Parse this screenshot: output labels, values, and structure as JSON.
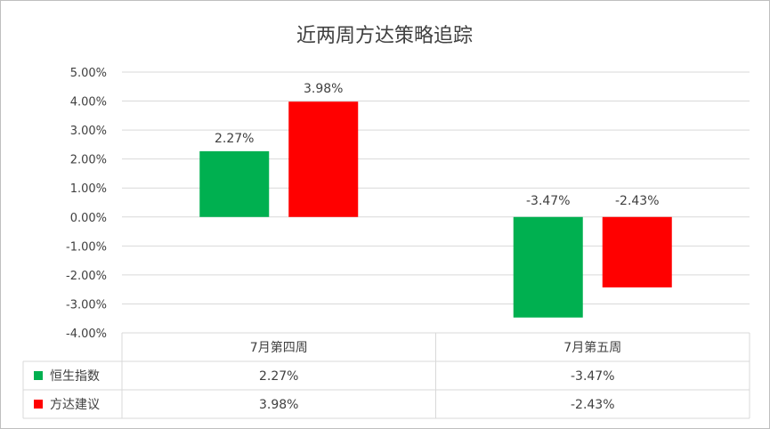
{
  "chart_data": {
    "type": "bar",
    "title": "近两周方达策略追踪",
    "categories": [
      "7月第四周",
      "7月第五周"
    ],
    "series": [
      {
        "name": "恒生指数",
        "values": [
          2.27,
          -3.47
        ],
        "color": "#00b050"
      },
      {
        "name": "方达建议",
        "values": [
          3.98,
          -2.43
        ],
        "color": "#ff0000"
      }
    ],
    "y_ticks": [
      "5.00%",
      "4.00%",
      "3.00%",
      "2.00%",
      "1.00%",
      "0.00%",
      "-1.00%",
      "-2.00%",
      "-3.00%",
      "-4.00%"
    ],
    "ylim": [
      -4,
      5
    ],
    "y_unit": "%",
    "data_labels": [
      [
        "2.27%",
        "-3.47%"
      ],
      [
        "3.98%",
        "-2.43%"
      ]
    ],
    "legend": "data-table",
    "grid": true
  }
}
